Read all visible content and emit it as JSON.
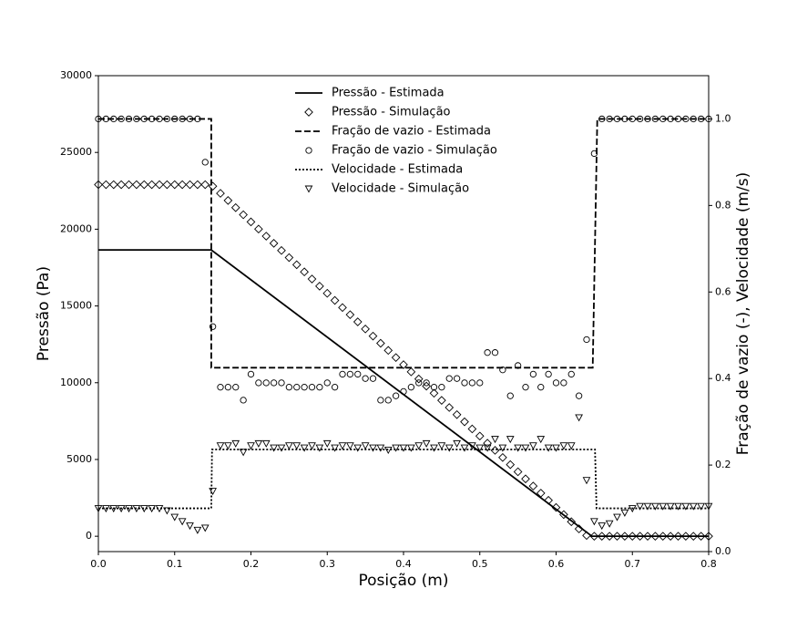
{
  "chart_data": {
    "type": "line",
    "xlabel": "Posição (m)",
    "ylabel": "Pressão (Pa)",
    "y2label": "Fração de vazio (-), Velocidade (m/s)",
    "xlim": [
      0,
      0.8
    ],
    "ylim": [
      -1000,
      30000
    ],
    "y2lim": [
      0,
      1.1
    ],
    "xticks": [
      {
        "value": 0,
        "label": "0.0"
      },
      0.1,
      0.2,
      0.3,
      0.4,
      0.5,
      0.6,
      0.7,
      0.8
    ],
    "yticks": [
      0,
      5000,
      10000,
      15000,
      20000,
      25000,
      30000
    ],
    "y2ticks": [
      {
        "value": 0,
        "label": "0.0"
      },
      0.2,
      0.4,
      0.6,
      0.8,
      {
        "value": 1,
        "label": "1.0"
      }
    ],
    "legend": "upper center",
    "series": [
      {
        "name": "Pressão - Estimada",
        "color": "#000000",
        "style": "solid",
        "axis": "y",
        "x": [
          0,
          0.148,
          0.647,
          0.8
        ],
        "values": [
          18650,
          18650,
          0,
          0
        ]
      },
      {
        "name": "Pressão - Simulação",
        "color": "#000000",
        "marker": "diamond",
        "axis": "y",
        "x": [
          0,
          0.01,
          0.02,
          0.03,
          0.04,
          0.05,
          0.06,
          0.07,
          0.08,
          0.09,
          0.1,
          0.11,
          0.12,
          0.13,
          0.14,
          0.15,
          0.16,
          0.17,
          0.18,
          0.19,
          0.2,
          0.21,
          0.22,
          0.23,
          0.24,
          0.25,
          0.26,
          0.27,
          0.28,
          0.29,
          0.3,
          0.31,
          0.32,
          0.33,
          0.34,
          0.35,
          0.36,
          0.37,
          0.38,
          0.39,
          0.4,
          0.41,
          0.42,
          0.43,
          0.44,
          0.45,
          0.46,
          0.47,
          0.48,
          0.49,
          0.5,
          0.51,
          0.52,
          0.53,
          0.54,
          0.55,
          0.56,
          0.57,
          0.58,
          0.59,
          0.6,
          0.61,
          0.62,
          0.63,
          0.64,
          0.65,
          0.66,
          0.67,
          0.68,
          0.69,
          0.7,
          0.71,
          0.72,
          0.73,
          0.74,
          0.75,
          0.76,
          0.77,
          0.78,
          0.79,
          0.8
        ],
        "values": [
          22900,
          22900,
          22900,
          22900,
          22900,
          22900,
          22900,
          22900,
          22900,
          22900,
          22900,
          22900,
          22900,
          22900,
          22900,
          22800,
          22335,
          21870,
          21405,
          20940,
          20475,
          20010,
          19545,
          19080,
          18615,
          18150,
          17685,
          17220,
          16755,
          16290,
          15825,
          15360,
          14895,
          14430,
          13965,
          13500,
          13035,
          12570,
          12105,
          11640,
          11175,
          10710,
          10245,
          9780,
          9315,
          8850,
          8385,
          7920,
          7455,
          6990,
          6525,
          6060,
          5595,
          5130,
          4665,
          4200,
          3735,
          3270,
          2805,
          2340,
          1875,
          1410,
          945,
          480,
          50,
          0,
          0,
          0,
          0,
          0,
          0,
          0,
          0,
          0,
          0,
          0,
          0,
          0,
          0,
          0,
          0
        ]
      },
      {
        "name": "Fração de vazio - Estimada",
        "color": "#000000",
        "style": "dashed",
        "axis": "y2",
        "x": [
          0,
          0.148,
          0.148,
          0.648,
          0.654,
          0.8
        ],
        "values": [
          1,
          1,
          0.425,
          0.425,
          1,
          1
        ]
      },
      {
        "name": "Fração de vazio - Simulação",
        "color": "#000000",
        "marker": "circle",
        "axis": "y2",
        "x": [
          0,
          0.01,
          0.02,
          0.03,
          0.04,
          0.05,
          0.06,
          0.07,
          0.08,
          0.09,
          0.1,
          0.11,
          0.12,
          0.13,
          0.14,
          0.15,
          0.16,
          0.17,
          0.18,
          0.19,
          0.2,
          0.21,
          0.22,
          0.23,
          0.24,
          0.25,
          0.26,
          0.27,
          0.28,
          0.29,
          0.3,
          0.31,
          0.32,
          0.33,
          0.34,
          0.35,
          0.36,
          0.37,
          0.38,
          0.39,
          0.4,
          0.41,
          0.42,
          0.43,
          0.44,
          0.45,
          0.46,
          0.47,
          0.48,
          0.49,
          0.5,
          0.51,
          0.52,
          0.53,
          0.54,
          0.55,
          0.56,
          0.57,
          0.58,
          0.59,
          0.6,
          0.61,
          0.62,
          0.63,
          0.64,
          0.65,
          0.66,
          0.67,
          0.68,
          0.69,
          0.7,
          0.71,
          0.72,
          0.73,
          0.74,
          0.75,
          0.76,
          0.77,
          0.78,
          0.79,
          0.8
        ],
        "values": [
          1,
          1,
          1,
          1,
          1,
          1,
          1,
          1,
          1,
          1,
          1,
          1,
          1,
          1,
          0.9,
          0.52,
          0.38,
          0.38,
          0.38,
          0.35,
          0.41,
          0.39,
          0.39,
          0.39,
          0.39,
          0.38,
          0.38,
          0.38,
          0.38,
          0.38,
          0.39,
          0.38,
          0.41,
          0.41,
          0.41,
          0.4,
          0.4,
          0.35,
          0.35,
          0.36,
          0.37,
          0.38,
          0.39,
          0.39,
          0.38,
          0.38,
          0.4,
          0.4,
          0.39,
          0.39,
          0.39,
          0.46,
          0.46,
          0.42,
          0.36,
          0.43,
          0.38,
          0.41,
          0.38,
          0.41,
          0.39,
          0.39,
          0.41,
          0.36,
          0.49,
          0.92,
          1,
          1,
          1,
          1,
          1,
          1,
          1,
          1,
          1,
          1,
          1,
          1,
          1,
          1,
          1
        ]
      },
      {
        "name": "Velocidade - Estimada",
        "color": "#000000",
        "style": "dotted",
        "axis": "y2",
        "x": [
          0,
          0.148,
          0.149,
          0.651,
          0.653,
          0.8
        ],
        "values": [
          0.1,
          0.1,
          0.236,
          0.236,
          0.1,
          0.1
        ]
      },
      {
        "name": "Velocidade - Simulação",
        "color": "#000000",
        "marker": "triangle",
        "axis": "y2",
        "x": [
          0,
          0.01,
          0.02,
          0.03,
          0.04,
          0.05,
          0.06,
          0.07,
          0.08,
          0.09,
          0.1,
          0.11,
          0.12,
          0.13,
          0.14,
          0.15,
          0.16,
          0.17,
          0.18,
          0.19,
          0.2,
          0.21,
          0.22,
          0.23,
          0.24,
          0.25,
          0.26,
          0.27,
          0.28,
          0.29,
          0.3,
          0.31,
          0.32,
          0.33,
          0.34,
          0.35,
          0.36,
          0.37,
          0.38,
          0.39,
          0.4,
          0.41,
          0.42,
          0.43,
          0.44,
          0.45,
          0.46,
          0.47,
          0.48,
          0.49,
          0.5,
          0.51,
          0.52,
          0.53,
          0.54,
          0.55,
          0.56,
          0.57,
          0.58,
          0.59,
          0.6,
          0.61,
          0.62,
          0.63,
          0.64,
          0.65,
          0.66,
          0.67,
          0.68,
          0.69,
          0.7,
          0.71,
          0.72,
          0.73,
          0.74,
          0.75,
          0.76,
          0.77,
          0.78,
          0.79,
          0.8
        ],
        "values": [
          0.1,
          0.1,
          0.1,
          0.1,
          0.1,
          0.1,
          0.1,
          0.1,
          0.1,
          0.095,
          0.08,
          0.07,
          0.06,
          0.05,
          0.055,
          0.14,
          0.245,
          0.245,
          0.25,
          0.23,
          0.245,
          0.25,
          0.25,
          0.24,
          0.24,
          0.245,
          0.245,
          0.24,
          0.245,
          0.24,
          0.25,
          0.24,
          0.245,
          0.245,
          0.24,
          0.245,
          0.24,
          0.24,
          0.235,
          0.24,
          0.24,
          0.24,
          0.245,
          0.25,
          0.24,
          0.245,
          0.24,
          0.25,
          0.24,
          0.245,
          0.24,
          0.24,
          0.26,
          0.24,
          0.26,
          0.24,
          0.24,
          0.245,
          0.26,
          0.24,
          0.24,
          0.245,
          0.245,
          0.31,
          0.165,
          0.07,
          0.06,
          0.065,
          0.08,
          0.09,
          0.1,
          0.105,
          0.105,
          0.105,
          0.105,
          0.105,
          0.105,
          0.105,
          0.105,
          0.105,
          0.105
        ]
      }
    ]
  }
}
